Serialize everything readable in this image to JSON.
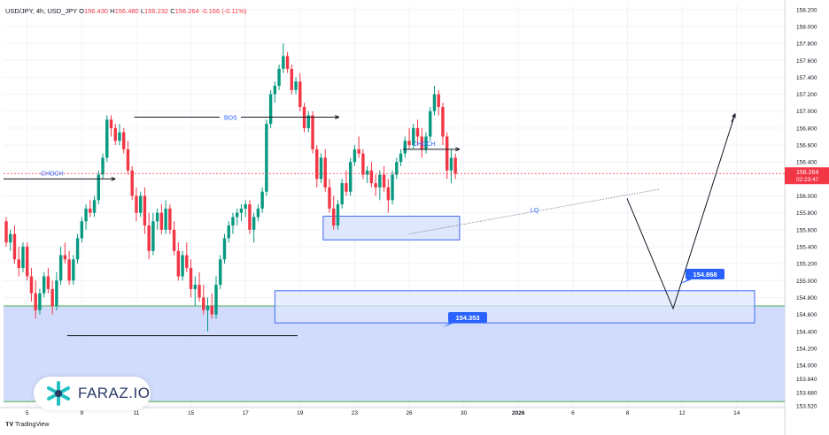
{
  "header": {
    "symbol": "USD/JPY, 4h, USD_JPY",
    "o_label": "O",
    "o": "156.430",
    "h_label": "H",
    "h": "156.480",
    "l_label": "L",
    "l": "156.232",
    "c_label": "C",
    "c": "156.264",
    "chg": "-0.166 (-0.11%)"
  },
  "brand": {
    "name": "FARAZ.IO"
  },
  "footer": {
    "tradingview": "TradingView"
  },
  "colors": {
    "up": "#089981",
    "down": "#f23645",
    "zone": "#3d6af5",
    "zone_fill": "#c8d5fb",
    "last": "#f23645",
    "label_bg": "#2962ff"
  },
  "chart_data": {
    "type": "candlestick",
    "title": "USD/JPY, 4h, USD_JPY",
    "y_axis": {
      "min": 153.5,
      "max": 158.25,
      "ticks": [
        "153.520",
        "153.680",
        "153.840",
        "154.000",
        "154.200",
        "154.400",
        "154.600",
        "154.800",
        "155.000",
        "155.200",
        "155.400",
        "155.600",
        "155.800",
        "156.000",
        "156.200",
        "156.400",
        "156.600",
        "156.800",
        "157.000",
        "157.200",
        "157.400",
        "157.600",
        "157.800",
        "158.000",
        "158.200"
      ]
    },
    "x_axis": {
      "ticks": [
        {
          "label": "5",
          "i": 5
        },
        {
          "label": "9",
          "i": 18
        },
        {
          "label": "11",
          "i": 31
        },
        {
          "label": "15",
          "i": 44
        },
        {
          "label": "17",
          "i": 57
        },
        {
          "label": "19",
          "i": 70
        },
        {
          "label": "23",
          "i": 83
        },
        {
          "label": "26",
          "i": 96
        },
        {
          "label": "30",
          "i": 109
        },
        {
          "label": "2026",
          "i": 122
        },
        {
          "label": "6",
          "i": 135
        },
        {
          "label": "8",
          "i": 148
        },
        {
          "label": "12",
          "i": 161
        },
        {
          "label": "14",
          "i": 174
        }
      ]
    },
    "last_price": {
      "value": "156.264",
      "countdown": "02:23:47",
      "price": 156.264
    },
    "candles": [
      [
        155.7,
        155.75,
        155.4,
        155.45
      ],
      [
        155.45,
        155.6,
        155.35,
        155.55
      ],
      [
        155.55,
        155.65,
        155.2,
        155.25
      ],
      [
        155.25,
        155.4,
        155.05,
        155.15
      ],
      [
        155.15,
        155.45,
        155.1,
        155.4
      ],
      [
        155.4,
        155.45,
        155.0,
        155.05
      ],
      [
        155.05,
        155.15,
        154.75,
        154.85
      ],
      [
        154.85,
        155.0,
        154.55,
        154.65
      ],
      [
        154.65,
        154.9,
        154.6,
        154.85
      ],
      [
        154.85,
        155.1,
        154.8,
        155.05
      ],
      [
        155.05,
        155.15,
        154.85,
        154.9
      ],
      [
        154.9,
        155.0,
        154.6,
        154.7
      ],
      [
        154.7,
        155.1,
        154.65,
        155.0
      ],
      [
        155.0,
        155.4,
        154.95,
        155.3
      ],
      [
        155.3,
        155.45,
        155.2,
        155.25
      ],
      [
        155.25,
        155.35,
        154.95,
        155.0
      ],
      [
        155.0,
        155.3,
        154.95,
        155.25
      ],
      [
        155.25,
        155.55,
        155.2,
        155.5
      ],
      [
        155.5,
        155.75,
        155.45,
        155.7
      ],
      [
        155.7,
        155.9,
        155.6,
        155.85
      ],
      [
        155.85,
        155.95,
        155.75,
        155.8
      ],
      [
        155.8,
        156.0,
        155.75,
        155.95
      ],
      [
        155.95,
        156.3,
        155.9,
        156.25
      ],
      [
        156.25,
        156.5,
        156.2,
        156.45
      ],
      [
        156.45,
        156.95,
        156.4,
        156.9
      ],
      [
        156.9,
        156.95,
        156.7,
        156.8
      ],
      [
        156.8,
        156.85,
        156.6,
        156.65
      ],
      [
        156.65,
        156.85,
        156.6,
        156.75
      ],
      [
        156.75,
        156.8,
        156.5,
        156.55
      ],
      [
        156.55,
        156.65,
        156.25,
        156.3
      ],
      [
        156.3,
        156.35,
        155.95,
        156.0
      ],
      [
        156.0,
        156.1,
        155.7,
        155.8
      ],
      [
        155.8,
        156.05,
        155.75,
        156.0
      ],
      [
        156.0,
        156.1,
        155.55,
        155.65
      ],
      [
        155.65,
        155.8,
        155.25,
        155.35
      ],
      [
        155.35,
        155.8,
        155.3,
        155.7
      ],
      [
        155.7,
        155.85,
        155.6,
        155.8
      ],
      [
        155.8,
        155.9,
        155.55,
        155.6
      ],
      [
        155.6,
        155.95,
        155.55,
        155.85
      ],
      [
        155.85,
        155.9,
        155.55,
        155.6
      ],
      [
        155.6,
        155.7,
        155.3,
        155.35
      ],
      [
        155.35,
        155.45,
        155.0,
        155.05
      ],
      [
        155.05,
        155.35,
        155.0,
        155.3
      ],
      [
        155.3,
        155.45,
        155.1,
        155.15
      ],
      [
        155.15,
        155.25,
        154.8,
        154.9
      ],
      [
        154.9,
        155.05,
        154.7,
        154.95
      ],
      [
        154.95,
        155.1,
        154.75,
        154.8
      ],
      [
        154.8,
        154.95,
        154.6,
        154.65
      ],
      [
        154.65,
        154.8,
        154.4,
        154.7
      ],
      [
        154.7,
        154.85,
        154.55,
        154.6
      ],
      [
        154.6,
        155.05,
        154.55,
        154.95
      ],
      [
        154.95,
        155.3,
        154.9,
        155.25
      ],
      [
        155.25,
        155.55,
        155.2,
        155.5
      ],
      [
        155.5,
        155.7,
        155.45,
        155.65
      ],
      [
        155.65,
        155.8,
        155.55,
        155.75
      ],
      [
        155.75,
        155.85,
        155.65,
        155.8
      ],
      [
        155.8,
        155.9,
        155.7,
        155.85
      ],
      [
        155.85,
        155.95,
        155.75,
        155.9
      ],
      [
        155.9,
        155.95,
        155.55,
        155.6
      ],
      [
        155.6,
        155.8,
        155.45,
        155.75
      ],
      [
        155.75,
        155.9,
        155.7,
        155.85
      ],
      [
        155.85,
        156.1,
        155.8,
        156.05
      ],
      [
        156.05,
        156.9,
        156.0,
        156.85
      ],
      [
        156.85,
        157.25,
        156.8,
        157.2
      ],
      [
        157.2,
        157.35,
        157.1,
        157.3
      ],
      [
        157.3,
        157.55,
        157.25,
        157.5
      ],
      [
        157.5,
        157.8,
        157.45,
        157.65
      ],
      [
        157.65,
        157.7,
        157.45,
        157.5
      ],
      [
        157.5,
        157.55,
        157.2,
        157.25
      ],
      [
        157.25,
        157.4,
        157.2,
        157.35
      ],
      [
        157.35,
        157.45,
        157.0,
        157.05
      ],
      [
        157.05,
        157.1,
        156.75,
        156.8
      ],
      [
        156.8,
        157.0,
        156.75,
        156.95
      ],
      [
        156.95,
        157.0,
        156.5,
        156.55
      ],
      [
        156.55,
        156.6,
        156.1,
        156.2
      ],
      [
        156.2,
        156.5,
        156.15,
        156.45
      ],
      [
        156.45,
        156.55,
        156.05,
        156.1
      ],
      [
        156.1,
        156.2,
        155.8,
        155.85
      ],
      [
        155.85,
        156.0,
        155.6,
        155.65
      ],
      [
        155.65,
        155.95,
        155.6,
        155.9
      ],
      [
        155.9,
        156.2,
        155.85,
        156.15
      ],
      [
        156.15,
        156.3,
        156.0,
        156.05
      ],
      [
        156.05,
        156.45,
        156.0,
        156.4
      ],
      [
        156.4,
        156.6,
        156.35,
        156.55
      ],
      [
        156.55,
        156.7,
        156.45,
        156.5
      ],
      [
        156.5,
        156.55,
        156.2,
        156.25
      ],
      [
        156.25,
        156.35,
        156.15,
        156.3
      ],
      [
        156.3,
        156.4,
        156.1,
        156.15
      ],
      [
        156.15,
        156.25,
        156.0,
        156.1
      ],
      [
        156.1,
        156.3,
        155.95,
        156.25
      ],
      [
        156.25,
        156.35,
        156.05,
        156.1
      ],
      [
        156.1,
        156.2,
        155.8,
        155.95
      ],
      [
        155.95,
        156.3,
        155.9,
        156.25
      ],
      [
        156.25,
        156.45,
        156.2,
        156.4
      ],
      [
        156.4,
        156.55,
        156.35,
        156.5
      ],
      [
        156.5,
        156.7,
        156.45,
        156.65
      ],
      [
        156.65,
        156.8,
        156.55,
        156.6
      ],
      [
        156.6,
        156.85,
        156.55,
        156.8
      ],
      [
        156.8,
        156.9,
        156.6,
        156.7
      ],
      [
        156.7,
        156.8,
        156.45,
        156.55
      ],
      [
        156.55,
        156.75,
        156.5,
        156.7
      ],
      [
        156.7,
        157.05,
        156.65,
        157.0
      ],
      [
        157.0,
        157.3,
        156.95,
        157.2
      ],
      [
        157.2,
        157.25,
        156.95,
        157.05
      ],
      [
        157.05,
        157.1,
        156.6,
        156.7
      ],
      [
        156.7,
        156.75,
        156.2,
        156.3
      ],
      [
        156.3,
        156.55,
        156.15,
        156.45
      ],
      [
        156.45,
        156.5,
        156.2,
        156.26
      ]
    ],
    "annotations": [
      {
        "type": "label",
        "text": "CHOCH"
      },
      {
        "type": "label",
        "text": "BOS"
      },
      {
        "type": "label",
        "text": "CHOCH"
      },
      {
        "type": "label",
        "text": "LQ"
      },
      {
        "type": "price_label",
        "text": "154.868"
      },
      {
        "type": "price_label",
        "text": "154.353"
      }
    ]
  }
}
